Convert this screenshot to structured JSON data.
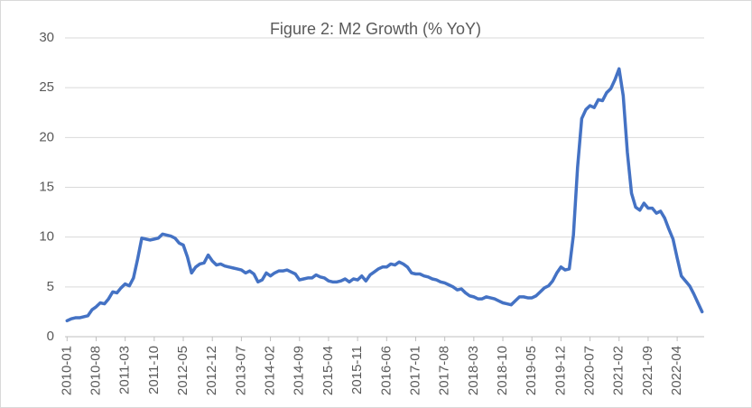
{
  "chart_data": {
    "type": "line",
    "title": "Figure 2: M2 Growth (% YoY)",
    "categories": [
      "2010-01",
      null,
      null,
      null,
      null,
      null,
      null,
      "2010-08",
      null,
      null,
      null,
      null,
      null,
      null,
      "2011-03",
      null,
      null,
      null,
      null,
      null,
      null,
      "2011-10",
      null,
      null,
      null,
      null,
      null,
      null,
      "2012-05",
      null,
      null,
      null,
      null,
      null,
      null,
      "2012-12",
      null,
      null,
      null,
      null,
      null,
      null,
      "2013-07",
      null,
      null,
      null,
      null,
      null,
      null,
      "2014-02",
      null,
      null,
      null,
      null,
      null,
      null,
      "2014-09",
      null,
      null,
      null,
      null,
      null,
      null,
      "2015-04",
      null,
      null,
      null,
      null,
      null,
      null,
      "2015-11",
      null,
      null,
      null,
      null,
      null,
      null,
      "2016-06",
      null,
      null,
      null,
      null,
      null,
      null,
      "2017-01",
      null,
      null,
      null,
      null,
      null,
      null,
      "2017-08",
      null,
      null,
      null,
      null,
      null,
      null,
      "2018-03",
      null,
      null,
      null,
      null,
      null,
      null,
      "2018-10",
      null,
      null,
      null,
      null,
      null,
      null,
      "2019-05",
      null,
      null,
      null,
      null,
      null,
      null,
      "2019-12",
      null,
      null,
      null,
      null,
      null,
      null,
      "2020-07",
      null,
      null,
      null,
      null,
      null,
      null,
      "2021-02",
      null,
      null,
      null,
      null,
      null,
      null,
      "2021-09",
      null,
      null,
      null,
      null,
      null,
      null,
      "2022-04",
      null,
      null,
      null,
      null,
      null,
      null
    ],
    "values": [
      1.6,
      1.8,
      1.9,
      1.9,
      2.0,
      2.1,
      2.7,
      3.0,
      3.4,
      3.3,
      3.8,
      4.5,
      4.4,
      4.9,
      5.3,
      5.1,
      5.9,
      7.8,
      9.9,
      9.8,
      9.7,
      9.8,
      9.9,
      10.3,
      10.2,
      10.1,
      9.9,
      9.4,
      9.2,
      8.0,
      6.4,
      7.0,
      7.3,
      7.4,
      8.2,
      7.6,
      7.2,
      7.3,
      7.1,
      7.0,
      6.9,
      6.8,
      6.7,
      6.4,
      6.6,
      6.3,
      5.5,
      5.7,
      6.4,
      6.1,
      6.4,
      6.6,
      6.6,
      6.7,
      6.5,
      6.3,
      5.7,
      5.8,
      5.9,
      5.9,
      6.2,
      6.0,
      5.9,
      5.6,
      5.5,
      5.5,
      5.6,
      5.8,
      5.5,
      5.8,
      5.7,
      6.1,
      5.6,
      6.2,
      6.5,
      6.8,
      7.0,
      7.0,
      7.3,
      7.2,
      7.5,
      7.3,
      7.0,
      6.4,
      6.3,
      6.3,
      6.1,
      6.0,
      5.8,
      5.7,
      5.5,
      5.4,
      5.2,
      5.0,
      4.7,
      4.8,
      4.4,
      4.1,
      4.0,
      3.8,
      3.8,
      4.0,
      3.9,
      3.8,
      3.6,
      3.4,
      3.3,
      3.2,
      3.6,
      4.0,
      4.0,
      3.9,
      3.9,
      4.1,
      4.5,
      4.9,
      5.1,
      5.6,
      6.4,
      7.0,
      6.7,
      6.8,
      10.2,
      17.0,
      21.9,
      22.8,
      23.2,
      23.0,
      23.8,
      23.7,
      24.5,
      24.9,
      25.8,
      26.9,
      24.2,
      18.5,
      14.4,
      13.0,
      12.7,
      13.4,
      12.9,
      12.9,
      12.4,
      12.6,
      11.9,
      10.8,
      9.8,
      7.9,
      6.1,
      5.6,
      5.1,
      4.3,
      3.4,
      2.5
    ],
    "color": "#4472c4",
    "ylim": [
      0,
      30
    ],
    "yticks": [
      0,
      5,
      10,
      15,
      20,
      25,
      30
    ],
    "grid": true
  }
}
